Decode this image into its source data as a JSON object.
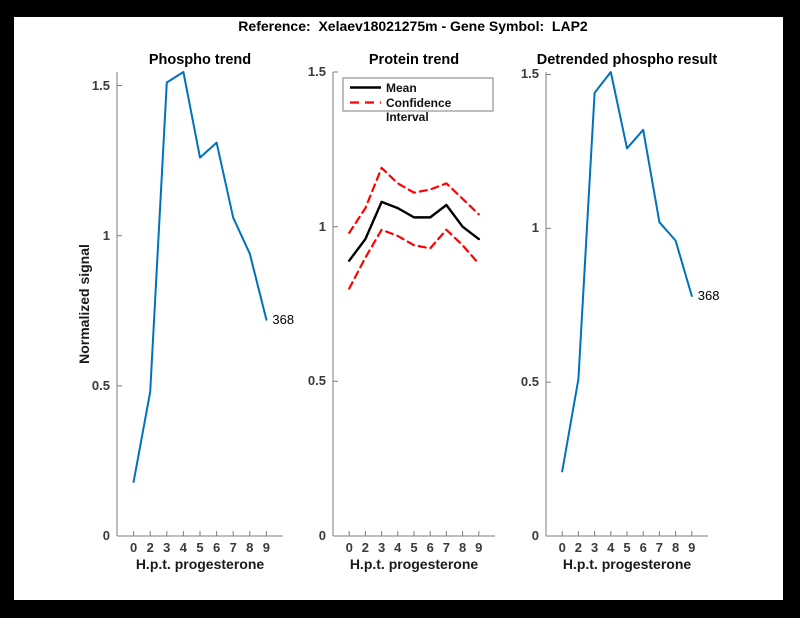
{
  "figure": {
    "title": "Reference:  Xelaev18021275m - Gene Symbol:  LAP2",
    "background_color": "#000000",
    "canvas_color": "#ffffff"
  },
  "chart_data": [
    {
      "type": "line",
      "title": "Phospho trend",
      "xlabel": "H.p.t. progesterone",
      "ylabel": "Normalized signal",
      "x": [
        0,
        2,
        3,
        4,
        5,
        6,
        7,
        8,
        9
      ],
      "x_tick_labels": [
        "0",
        "2",
        "3",
        "4",
        "5",
        "6",
        "7",
        "8",
        "9"
      ],
      "y_ticks": [
        {
          "value": 0,
          "label": "0"
        },
        {
          "value": 0.5,
          "label": "0.5"
        },
        {
          "value": 1,
          "label": "1"
        },
        {
          "value": 1.5,
          "label": "1.5"
        }
      ],
      "ylim": [
        0,
        1.545
      ],
      "grid": false,
      "series": [
        {
          "name": "Phospho signal",
          "color": "#0072BD",
          "dash": "solid",
          "width": 2,
          "values": [
            0.18,
            0.48,
            1.51,
            1.545,
            1.26,
            1.31,
            1.06,
            0.94,
            0.72
          ]
        }
      ],
      "end_label": "368"
    },
    {
      "type": "line",
      "title": "Protein trend",
      "xlabel": "H.p.t. progesterone",
      "ylabel": "",
      "x": [
        0,
        2,
        3,
        4,
        5,
        6,
        7,
        8,
        9
      ],
      "x_tick_labels": [
        "0",
        "2",
        "3",
        "4",
        "5",
        "6",
        "7",
        "8",
        "9"
      ],
      "y_ticks": [
        {
          "value": 0,
          "label": "0"
        },
        {
          "value": 0.5,
          "label": "0.5"
        },
        {
          "value": 1,
          "label": "1"
        },
        {
          "value": 1.5,
          "label": "1.5"
        }
      ],
      "ylim": [
        0,
        1.5
      ],
      "grid": false,
      "legend": {
        "position": "top-left",
        "entries": [
          {
            "label": "Mean"
          },
          {
            "label": "Confidence Interval"
          }
        ]
      },
      "series": [
        {
          "name": "Mean",
          "color": "#000000",
          "dash": "solid",
          "width": 2.4,
          "values": [
            0.89,
            0.96,
            1.08,
            1.06,
            1.03,
            1.03,
            1.07,
            1.0,
            0.96
          ]
        },
        {
          "name": "Confidence Interval upper",
          "color": "#FF0000",
          "dash": "dashed",
          "width": 2.2,
          "values": [
            0.98,
            1.06,
            1.19,
            1.14,
            1.11,
            1.12,
            1.14,
            1.09,
            1.04
          ]
        },
        {
          "name": "Confidence Interval lower",
          "color": "#FF0000",
          "dash": "dashed",
          "width": 2.2,
          "values": [
            0.8,
            0.9,
            0.99,
            0.97,
            0.94,
            0.93,
            0.99,
            0.94,
            0.88
          ]
        }
      ]
    },
    {
      "type": "line",
      "title": "Detrended phospho result",
      "xlabel": "H.p.t. progesterone",
      "ylabel": "",
      "x": [
        0,
        2,
        3,
        4,
        5,
        6,
        7,
        8,
        9
      ],
      "x_tick_labels": [
        "0",
        "2",
        "3",
        "4",
        "5",
        "6",
        "7",
        "8",
        "9"
      ],
      "y_ticks": [
        {
          "value": 0,
          "label": "0"
        },
        {
          "value": 0.5,
          "label": "0.5"
        },
        {
          "value": 1,
          "label": "1"
        },
        {
          "value": 1.5,
          "label": "1.5"
        }
      ],
      "ylim": [
        0,
        1.508
      ],
      "grid": false,
      "series": [
        {
          "name": "Detrended phospho signal",
          "color": "#0072BD",
          "dash": "solid",
          "width": 2,
          "values": [
            0.21,
            0.51,
            1.44,
            1.508,
            1.26,
            1.32,
            1.02,
            0.96,
            0.78
          ]
        }
      ],
      "end_label": "368"
    }
  ]
}
